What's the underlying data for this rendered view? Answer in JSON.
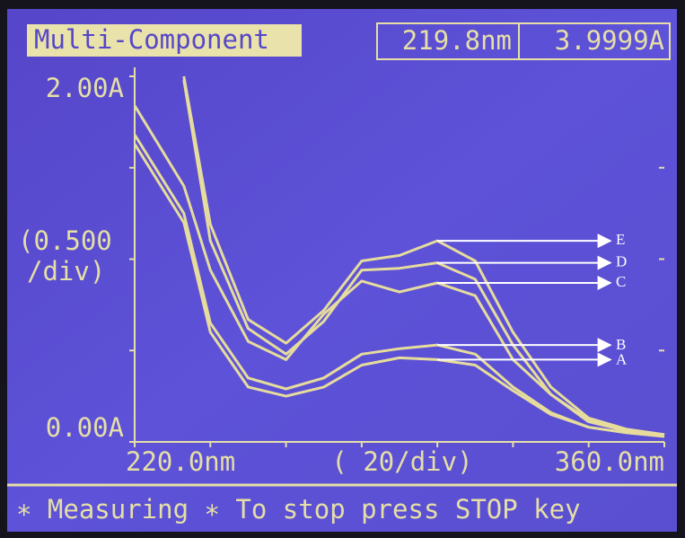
{
  "header": {
    "title": "Multi-Component",
    "wavelength": "219.8nm",
    "absorbance": "3.9999A"
  },
  "footer": {
    "status": "∗ Measuring ∗ To stop press STOP key"
  },
  "chart_data": {
    "type": "line",
    "y_axis_label_1": "(0.500",
    "y_axis_label_2": "/div)",
    "x_axis_label": "( 20/div)",
    "x": [
      220,
      233,
      240,
      250,
      260,
      270,
      280,
      290,
      300,
      310,
      320,
      330,
      340,
      350,
      360
    ],
    "xlim": [
      220,
      360
    ],
    "xticks": [
      {
        "value": 220,
        "label": "220.0nm"
      },
      {
        "value": 360,
        "label": "360.0nm"
      }
    ],
    "xminor": [
      240,
      260,
      280,
      300,
      320,
      340
    ],
    "ylim": [
      0,
      2
    ],
    "yticks": [
      {
        "value": 0,
        "label": "0.00A"
      },
      {
        "value": 2,
        "label": "2.00A"
      }
    ],
    "yminor": [
      0.5,
      1,
      1.5
    ],
    "series": [
      {
        "name": "E",
        "color": "#e6dc9c",
        "values": [
          null,
          2.0,
          1.19,
          0.67,
          0.54,
          0.72,
          0.99,
          1.02,
          1.1,
          0.99,
          0.6,
          0.3,
          0.13,
          0.07,
          0.04
        ]
      },
      {
        "name": "D",
        "color": "#e6dc9c",
        "values": [
          null,
          1.98,
          1.1,
          0.62,
          0.48,
          0.66,
          0.94,
          0.95,
          0.98,
          0.89,
          0.53,
          0.26,
          0.12,
          0.06,
          0.04
        ]
      },
      {
        "name": "C",
        "color": "#e6dc9c",
        "values": [
          1.84,
          1.4,
          0.94,
          0.55,
          0.45,
          0.7,
          0.88,
          0.82,
          0.87,
          0.8,
          0.45,
          0.26,
          0.11,
          0.06,
          0.04
        ]
      },
      {
        "name": "B",
        "color": "#e6dc9c",
        "values": [
          1.68,
          1.25,
          0.65,
          0.35,
          0.29,
          0.35,
          0.48,
          0.51,
          0.53,
          0.48,
          0.3,
          0.16,
          0.08,
          0.05,
          0.03
        ]
      },
      {
        "name": "A",
        "color": "#e6dc9c",
        "values": [
          1.63,
          1.2,
          0.6,
          0.3,
          0.25,
          0.3,
          0.42,
          0.46,
          0.45,
          0.42,
          0.28,
          0.15,
          0.08,
          0.05,
          0.03
        ]
      }
    ]
  }
}
